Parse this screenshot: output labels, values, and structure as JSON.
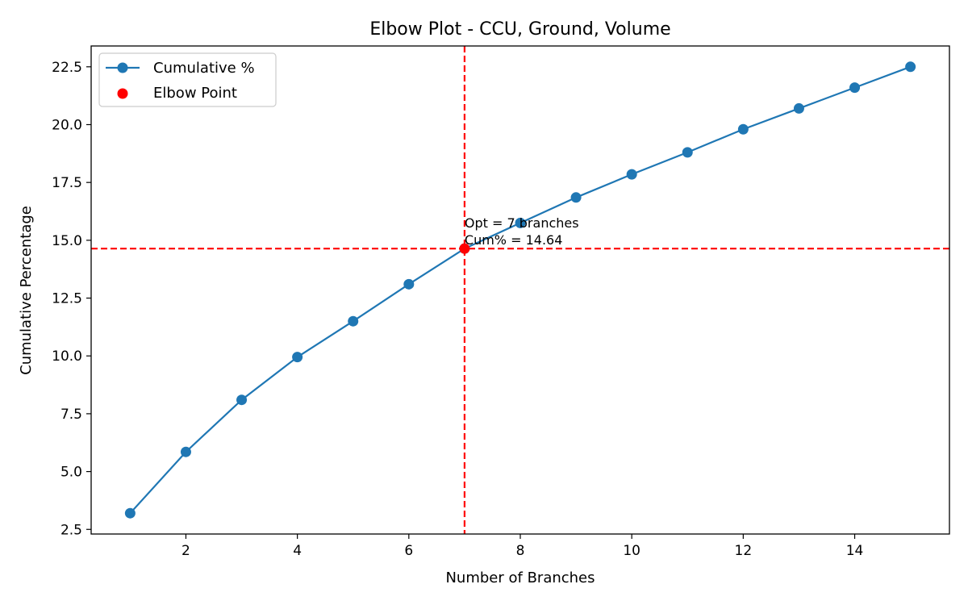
{
  "chart_data": {
    "type": "line",
    "title": "Elbow Plot - CCU, Ground, Volume",
    "xlabel": "Number of Branches",
    "ylabel": "Cumulative Percentage",
    "xlim": [
      0.3,
      15.7
    ],
    "ylim": [
      2.3,
      23.4
    ],
    "xticks": [
      2,
      4,
      6,
      8,
      10,
      12,
      14
    ],
    "yticks": [
      2.5,
      5.0,
      7.5,
      10.0,
      12.5,
      15.0,
      17.5,
      20.0,
      22.5
    ],
    "ytick_labels": [
      "2.5",
      "5.0",
      "7.5",
      "10.0",
      "12.5",
      "15.0",
      "17.5",
      "20.0",
      "22.5"
    ],
    "grid": false,
    "legend_position": "top-left",
    "series": [
      {
        "name": "Cumulative %",
        "color": "#1f77b4",
        "x": [
          1,
          2,
          3,
          4,
          5,
          6,
          7,
          8,
          9,
          10,
          11,
          12,
          13,
          14,
          15
        ],
        "values": [
          3.2,
          5.85,
          8.1,
          9.95,
          11.5,
          13.1,
          14.64,
          15.75,
          16.85,
          17.85,
          18.8,
          19.8,
          20.7,
          21.6,
          22.5
        ]
      }
    ],
    "elbow": {
      "name": "Elbow Point",
      "color": "#ff0000",
      "x": 7,
      "y": 14.64,
      "annotation_line1": "Opt = 7 branches",
      "annotation_line2": "Cum% = 14.64"
    }
  }
}
